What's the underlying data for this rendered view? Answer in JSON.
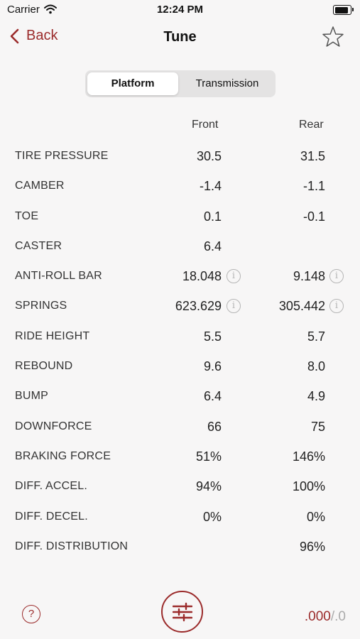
{
  "status_bar": {
    "carrier": "Carrier",
    "time": "12:24 PM",
    "battery_level": 0.9
  },
  "nav": {
    "back_label": "Back",
    "title": "Tune"
  },
  "segment": {
    "active": "Platform",
    "inactive": "Transmission"
  },
  "columns": {
    "front": "Front",
    "rear": "Rear"
  },
  "rows": [
    {
      "label": "TIRE PRESSURE",
      "front": "30.5",
      "rear": "31.5"
    },
    {
      "label": "CAMBER",
      "front": "-1.4",
      "rear": "-1.1"
    },
    {
      "label": "TOE",
      "front": "0.1",
      "rear": "-0.1"
    },
    {
      "label": "CASTER",
      "front": "6.4",
      "rear": ""
    },
    {
      "label": "ANTI-ROLL BAR",
      "front": "18.048",
      "rear": "9.148"
    },
    {
      "label": "SPRINGS",
      "front": "623.629",
      "rear": "305.442"
    },
    {
      "label": "RIDE HEIGHT",
      "front": "5.5",
      "rear": "5.7"
    },
    {
      "label": "REBOUND",
      "front": "9.6",
      "rear": "8.0"
    },
    {
      "label": "BUMP",
      "front": "6.4",
      "rear": "4.9"
    },
    {
      "label": "DOWNFORCE",
      "front": "66",
      "rear": "75"
    },
    {
      "label": "BRAKING FORCE",
      "front": "51%",
      "rear": "146%"
    },
    {
      "label": "DIFF. ACCEL.",
      "front": "94%",
      "rear": "100%"
    },
    {
      "label": "DIFF. DECEL.",
      "front": "0%",
      "rear": "0%"
    },
    {
      "label": "DIFF. DISTRIBUTION",
      "front": "",
      "rear": "96%"
    }
  ],
  "info_glyph": "i",
  "footer": {
    "help_glyph": "?",
    "score_main": ".000",
    "score_separator": "/",
    "score_total": ".0"
  },
  "colors": {
    "accent": "#9b2b2b",
    "background": "#f7f6f6"
  },
  "icons": [
    "wifi-icon",
    "battery-icon",
    "chevron-left-icon",
    "star-icon",
    "info-icon",
    "help-icon",
    "sliders-icon"
  ]
}
